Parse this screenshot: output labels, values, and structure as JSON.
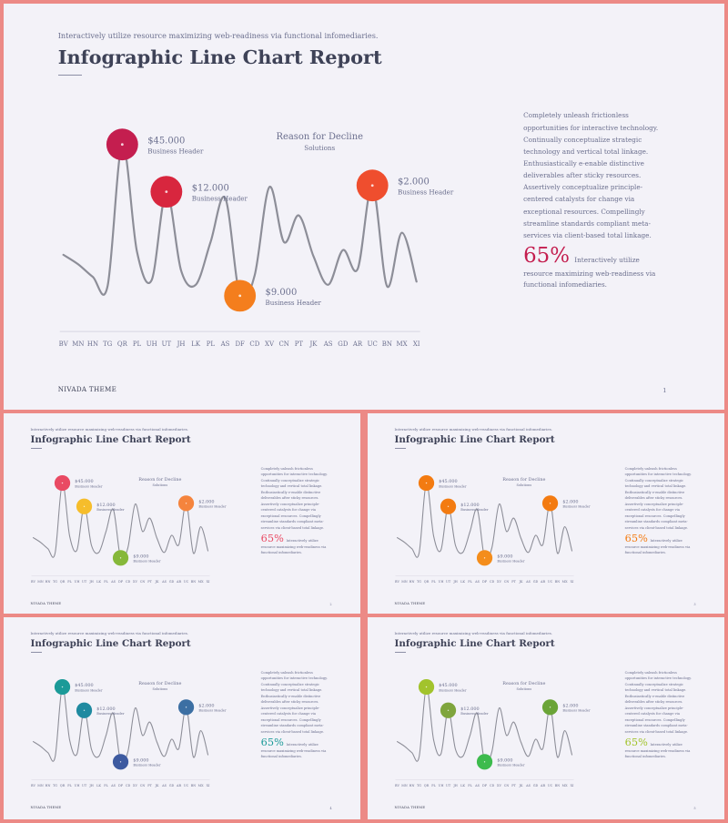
{
  "presentation": {
    "tagline": "Interactively utilize resource maximizing web-readiness via functional infomediaries.",
    "title": "Infographic Line Chart Report",
    "description": "Completely unleash frictionless opportunities for interactive technology. Continually conceptualize strategic technology and vertical total linkage. Enthusiastically e-enable distinctive deliverables after sticky resources. Assertively conceptualize principle-centered catalysts for change via exceptional resources. Compellingly streamline standards compliant meta-services via client-based total linkage.",
    "stat_value": "65%",
    "stat_text": "Interactively utilize resource maximizing web-readiness via functional infomediaries.",
    "footer": "NIVADA THEME"
  },
  "chart_data": {
    "type": "line",
    "categories": [
      "BV",
      "MN",
      "HN",
      "TG",
      "QR",
      "PL",
      "UH",
      "UT",
      "JH",
      "LK",
      "PL",
      "AS",
      "DF",
      "CD",
      "XV",
      "CN",
      "PT",
      "JK",
      "AS",
      "GD",
      "AR",
      "UC",
      "BN",
      "MX",
      "XI"
    ],
    "series": [
      {
        "values": [
          28,
          22,
          14,
          8,
          98,
          30,
          12,
          68,
          18,
          9,
          36,
          64,
          2,
          15,
          71,
          36,
          53,
          27,
          9,
          31,
          19,
          72,
          8,
          42,
          11
        ]
      }
    ],
    "ylim": [
      0,
      100
    ],
    "annotations": [
      {
        "point": 4,
        "value": "$45.000",
        "label": "Business Header"
      },
      {
        "point": 7,
        "value": "$12.000",
        "label": "Business Header"
      },
      {
        "point": 12,
        "value": "$9.000",
        "label": "Business Header"
      },
      {
        "point": 21,
        "value": "$2.000",
        "label": "Business Header"
      },
      {
        "label": "Reason for Decline",
        "sublabel": "Solutions"
      }
    ]
  },
  "slides": [
    {
      "page": "1",
      "colors": [
        "#c41e4f",
        "#d8263e",
        "#f47e1d",
        "#ef4e2e"
      ],
      "accent": "#c41e4f"
    },
    {
      "page": "2",
      "colors": [
        "#e94a63",
        "#f6bd2b",
        "#86b83a",
        "#f5843d"
      ],
      "accent": "#e94a63"
    },
    {
      "page": "3",
      "colors": [
        "#f37b11",
        "#f37b11",
        "#f48d1b",
        "#f37b11"
      ],
      "accent": "#f37b11"
    },
    {
      "page": "4",
      "colors": [
        "#1b9a98",
        "#1f8aa0",
        "#3d5aa0",
        "#3c6fa3"
      ],
      "accent": "#1b9a98"
    },
    {
      "page": "5",
      "colors": [
        "#a2c32c",
        "#7fa53d",
        "#3dbb4d",
        "#6aa437"
      ],
      "accent": "#a2c32c"
    }
  ]
}
